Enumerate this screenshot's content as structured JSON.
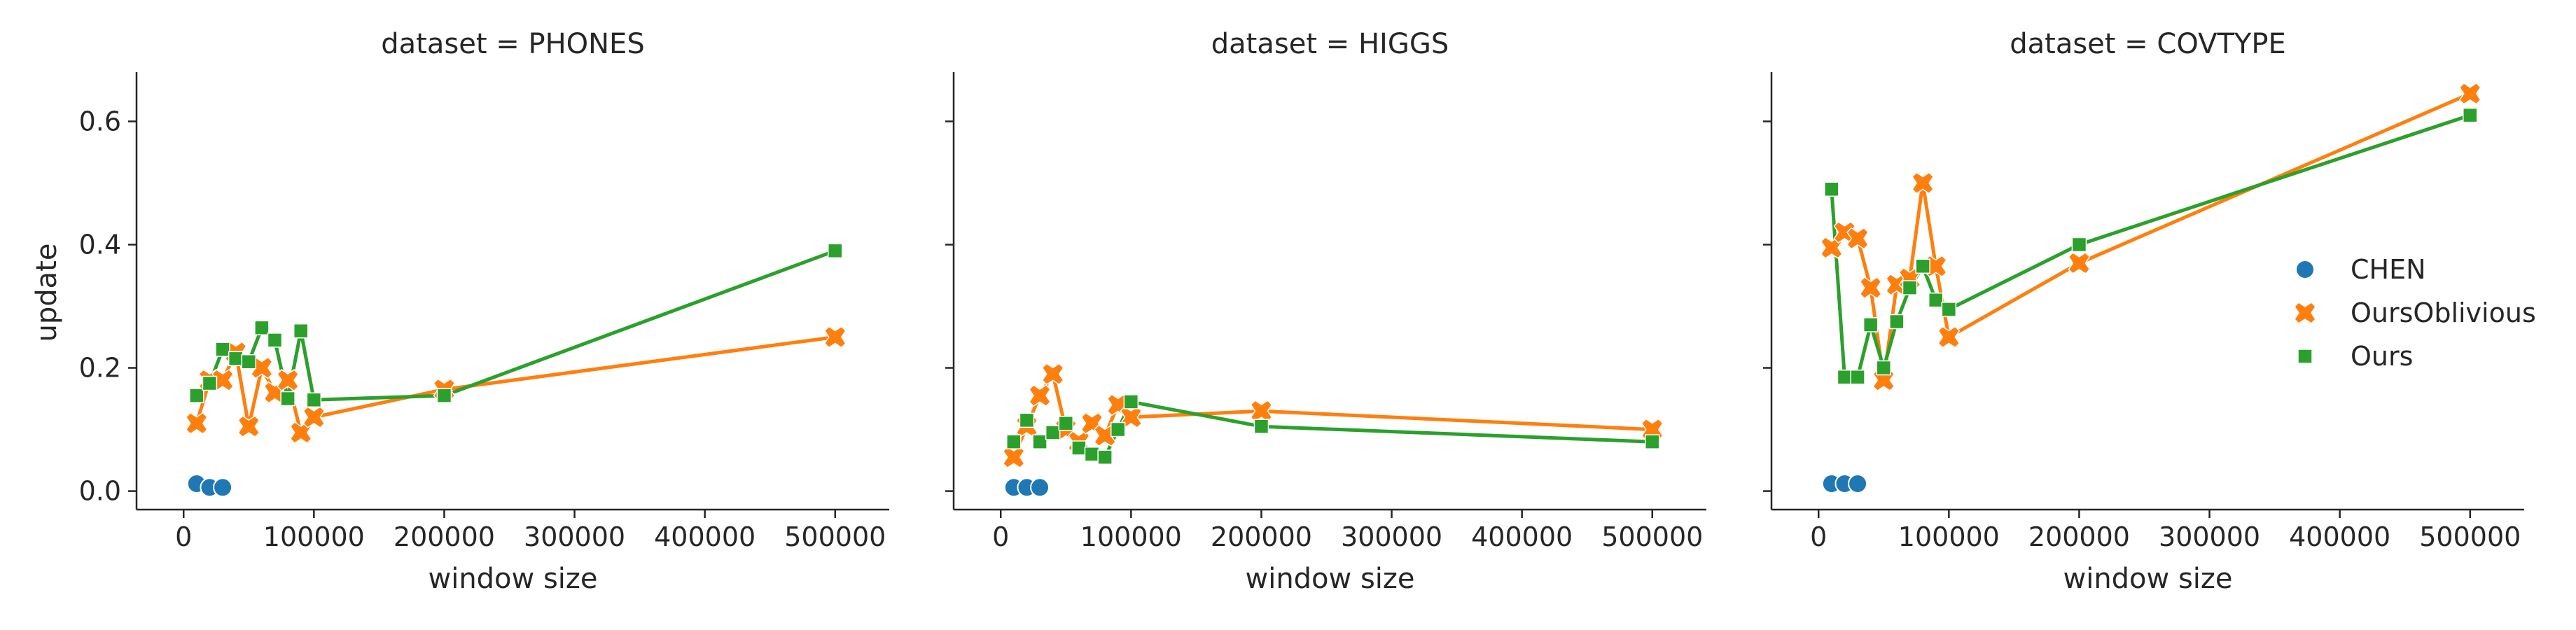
{
  "figure": {
    "y_label": "update",
    "x_label": "window size"
  },
  "legend": {
    "placement": "right",
    "entries": [
      {
        "name": "CHEN",
        "color": "#1f77b4",
        "marker": "circle"
      },
      {
        "name": "OursOblivious",
        "color": "#ff7f0e",
        "marker": "x"
      },
      {
        "name": "Ours",
        "color": "#2ca02c",
        "marker": "square"
      }
    ]
  },
  "chart_data": [
    {
      "type": "line",
      "title": "dataset = PHONES",
      "xlabel": "window size",
      "ylabel": "update",
      "xlim": [
        -20000,
        520000
      ],
      "ylim": [
        -0.03,
        0.68
      ],
      "xticks": [
        "0",
        "100000",
        "200000",
        "300000",
        "400000",
        "500000"
      ],
      "yticks": [
        "0.0",
        "0.2",
        "0.4",
        "0.6"
      ],
      "grid": false,
      "series": [
        {
          "name": "CHEN",
          "x": [
            10000,
            20000,
            30000
          ],
          "y": [
            0.012,
            0.006,
            0.006
          ]
        },
        {
          "name": "OursOblivious",
          "x": [
            10000,
            20000,
            30000,
            40000,
            50000,
            60000,
            70000,
            80000,
            90000,
            100000,
            200000,
            500000
          ],
          "y": [
            0.11,
            0.18,
            0.18,
            0.225,
            0.105,
            0.2,
            0.16,
            0.18,
            0.095,
            0.12,
            0.165,
            0.25
          ]
        },
        {
          "name": "Ours",
          "x": [
            10000,
            20000,
            30000,
            40000,
            50000,
            60000,
            70000,
            80000,
            90000,
            100000,
            200000,
            500000
          ],
          "y": [
            0.155,
            0.175,
            0.23,
            0.215,
            0.21,
            0.265,
            0.245,
            0.15,
            0.26,
            0.148,
            0.155,
            0.39
          ]
        }
      ]
    },
    {
      "type": "line",
      "title": "dataset = HIGGS",
      "xlabel": "window size",
      "ylabel": "update",
      "xlim": [
        -20000,
        520000
      ],
      "ylim": [
        -0.03,
        0.68
      ],
      "xticks": [
        "0",
        "100000",
        "200000",
        "300000",
        "400000",
        "500000"
      ],
      "yticks": [
        "0.0",
        "0.2",
        "0.4",
        "0.6"
      ],
      "grid": false,
      "series": [
        {
          "name": "CHEN",
          "x": [
            10000,
            20000,
            30000
          ],
          "y": [
            0.006,
            0.006,
            0.006
          ]
        },
        {
          "name": "OursOblivious",
          "x": [
            10000,
            20000,
            30000,
            40000,
            50000,
            60000,
            70000,
            80000,
            90000,
            100000,
            200000,
            500000
          ],
          "y": [
            0.055,
            0.105,
            0.155,
            0.19,
            0.1,
            0.08,
            0.11,
            0.09,
            0.14,
            0.12,
            0.13,
            0.1
          ]
        },
        {
          "name": "Ours",
          "x": [
            10000,
            20000,
            30000,
            40000,
            50000,
            60000,
            70000,
            80000,
            90000,
            100000,
            200000,
            500000
          ],
          "y": [
            0.08,
            0.115,
            0.08,
            0.095,
            0.11,
            0.07,
            0.06,
            0.055,
            0.1,
            0.145,
            0.105,
            0.08
          ]
        }
      ]
    },
    {
      "type": "line",
      "title": "dataset = COVTYPE",
      "xlabel": "window size",
      "ylabel": "update",
      "xlim": [
        -20000,
        520000
      ],
      "ylim": [
        -0.03,
        0.68
      ],
      "xticks": [
        "0",
        "100000",
        "200000",
        "300000",
        "400000",
        "500000"
      ],
      "yticks": [
        "0.0",
        "0.2",
        "0.4",
        "0.6"
      ],
      "grid": false,
      "series": [
        {
          "name": "CHEN",
          "x": [
            10000,
            20000,
            30000
          ],
          "y": [
            0.012,
            0.012,
            0.012
          ]
        },
        {
          "name": "OursOblivious",
          "x": [
            10000,
            20000,
            30000,
            40000,
            50000,
            60000,
            70000,
            80000,
            90000,
            100000,
            200000,
            500000
          ],
          "y": [
            0.395,
            0.42,
            0.41,
            0.33,
            0.18,
            0.335,
            0.345,
            0.5,
            0.365,
            0.25,
            0.37,
            0.645
          ]
        },
        {
          "name": "Ours",
          "x": [
            10000,
            20000,
            30000,
            40000,
            50000,
            60000,
            70000,
            80000,
            90000,
            100000,
            200000,
            500000
          ],
          "y": [
            0.49,
            0.185,
            0.185,
            0.27,
            0.2,
            0.275,
            0.33,
            0.365,
            0.31,
            0.295,
            0.4,
            0.61
          ]
        }
      ]
    }
  ]
}
